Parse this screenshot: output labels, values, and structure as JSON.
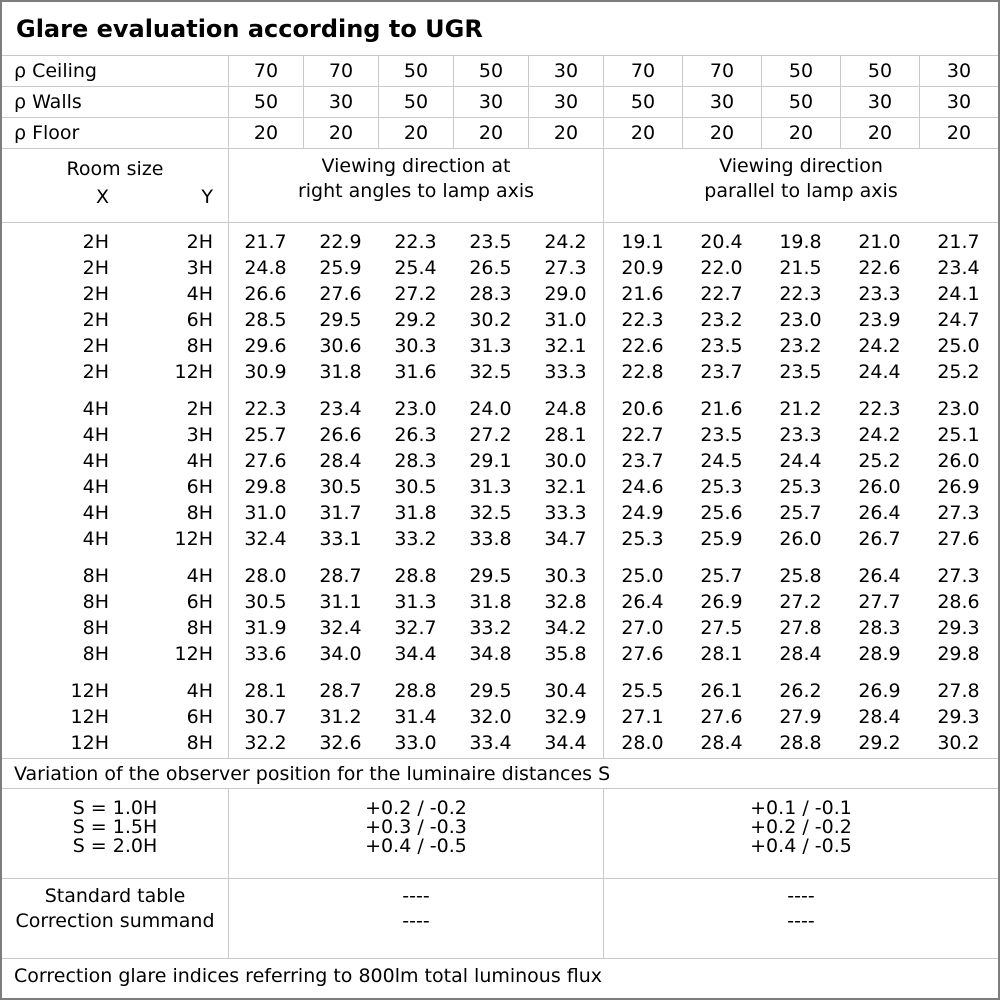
{
  "title": "Glare evaluation according to UGR",
  "colors": {
    "background": "#ffffff",
    "text": "#000000",
    "border_outer": "#7d7d7d",
    "border_inner": "#c9c9c9"
  },
  "reflectance_rows": [
    {
      "label": "ρ Ceiling",
      "values": [
        "70",
        "70",
        "50",
        "50",
        "30",
        "70",
        "70",
        "50",
        "50",
        "30"
      ]
    },
    {
      "label": "ρ Walls",
      "values": [
        "50",
        "30",
        "50",
        "30",
        "30",
        "50",
        "30",
        "50",
        "30",
        "30"
      ]
    },
    {
      "label": "ρ Floor",
      "values": [
        "20",
        "20",
        "20",
        "20",
        "20",
        "20",
        "20",
        "20",
        "20",
        "20"
      ]
    }
  ],
  "header": {
    "room_size_label": "Room size",
    "x_label": "X",
    "y_label": "Y",
    "group1_line1": "Viewing direction at",
    "group1_line2": "right angles to lamp axis",
    "group2_line1": "Viewing direction",
    "group2_line2": "parallel to lamp axis"
  },
  "ugr_blocks": [
    {
      "x": "2H",
      "rows": [
        {
          "y": "2H",
          "right_angles": [
            "21.7",
            "22.9",
            "22.3",
            "23.5",
            "24.2"
          ],
          "parallel": [
            "19.1",
            "20.4",
            "19.8",
            "21.0",
            "21.7"
          ]
        },
        {
          "y": "3H",
          "right_angles": [
            "24.8",
            "25.9",
            "25.4",
            "26.5",
            "27.3"
          ],
          "parallel": [
            "20.9",
            "22.0",
            "21.5",
            "22.6",
            "23.4"
          ]
        },
        {
          "y": "4H",
          "right_angles": [
            "26.6",
            "27.6",
            "27.2",
            "28.3",
            "29.0"
          ],
          "parallel": [
            "21.6",
            "22.7",
            "22.3",
            "23.3",
            "24.1"
          ]
        },
        {
          "y": "6H",
          "right_angles": [
            "28.5",
            "29.5",
            "29.2",
            "30.2",
            "31.0"
          ],
          "parallel": [
            "22.3",
            "23.2",
            "23.0",
            "23.9",
            "24.7"
          ]
        },
        {
          "y": "8H",
          "right_angles": [
            "29.6",
            "30.6",
            "30.3",
            "31.3",
            "32.1"
          ],
          "parallel": [
            "22.6",
            "23.5",
            "23.2",
            "24.2",
            "25.0"
          ]
        },
        {
          "y": "12H",
          "right_angles": [
            "30.9",
            "31.8",
            "31.6",
            "32.5",
            "33.3"
          ],
          "parallel": [
            "22.8",
            "23.7",
            "23.5",
            "24.4",
            "25.2"
          ]
        }
      ]
    },
    {
      "x": "4H",
      "rows": [
        {
          "y": "2H",
          "right_angles": [
            "22.3",
            "23.4",
            "23.0",
            "24.0",
            "24.8"
          ],
          "parallel": [
            "20.6",
            "21.6",
            "21.2",
            "22.3",
            "23.0"
          ]
        },
        {
          "y": "3H",
          "right_angles": [
            "25.7",
            "26.6",
            "26.3",
            "27.2",
            "28.1"
          ],
          "parallel": [
            "22.7",
            "23.5",
            "23.3",
            "24.2",
            "25.1"
          ]
        },
        {
          "y": "4H",
          "right_angles": [
            "27.6",
            "28.4",
            "28.3",
            "29.1",
            "30.0"
          ],
          "parallel": [
            "23.7",
            "24.5",
            "24.4",
            "25.2",
            "26.0"
          ]
        },
        {
          "y": "6H",
          "right_angles": [
            "29.8",
            "30.5",
            "30.5",
            "31.3",
            "32.1"
          ],
          "parallel": [
            "24.6",
            "25.3",
            "25.3",
            "26.0",
            "26.9"
          ]
        },
        {
          "y": "8H",
          "right_angles": [
            "31.0",
            "31.7",
            "31.8",
            "32.5",
            "33.3"
          ],
          "parallel": [
            "24.9",
            "25.6",
            "25.7",
            "26.4",
            "27.3"
          ]
        },
        {
          "y": "12H",
          "right_angles": [
            "32.4",
            "33.1",
            "33.2",
            "33.8",
            "34.7"
          ],
          "parallel": [
            "25.3",
            "25.9",
            "26.0",
            "26.7",
            "27.6"
          ]
        }
      ]
    },
    {
      "x": "8H",
      "rows": [
        {
          "y": "4H",
          "right_angles": [
            "28.0",
            "28.7",
            "28.8",
            "29.5",
            "30.3"
          ],
          "parallel": [
            "25.0",
            "25.7",
            "25.8",
            "26.4",
            "27.3"
          ]
        },
        {
          "y": "6H",
          "right_angles": [
            "30.5",
            "31.1",
            "31.3",
            "31.8",
            "32.8"
          ],
          "parallel": [
            "26.4",
            "26.9",
            "27.2",
            "27.7",
            "28.6"
          ]
        },
        {
          "y": "8H",
          "right_angles": [
            "31.9",
            "32.4",
            "32.7",
            "33.2",
            "34.2"
          ],
          "parallel": [
            "27.0",
            "27.5",
            "27.8",
            "28.3",
            "29.3"
          ]
        },
        {
          "y": "12H",
          "right_angles": [
            "33.6",
            "34.0",
            "34.4",
            "34.8",
            "35.8"
          ],
          "parallel": [
            "27.6",
            "28.1",
            "28.4",
            "28.9",
            "29.8"
          ]
        }
      ]
    },
    {
      "x": "12H",
      "rows": [
        {
          "y": "4H",
          "right_angles": [
            "28.1",
            "28.7",
            "28.8",
            "29.5",
            "30.4"
          ],
          "parallel": [
            "25.5",
            "26.1",
            "26.2",
            "26.9",
            "27.8"
          ]
        },
        {
          "y": "6H",
          "right_angles": [
            "30.7",
            "31.2",
            "31.4",
            "32.0",
            "32.9"
          ],
          "parallel": [
            "27.1",
            "27.6",
            "27.9",
            "28.4",
            "29.3"
          ]
        },
        {
          "y": "8H",
          "right_angles": [
            "32.2",
            "32.6",
            "33.0",
            "33.4",
            "34.4"
          ],
          "parallel": [
            "28.0",
            "28.4",
            "28.8",
            "29.2",
            "30.2"
          ]
        }
      ]
    }
  ],
  "variation_note": "Variation of the observer position for the luminaire distances S",
  "s_rows": [
    {
      "label": "S = 1.0H",
      "right_angles": "+0.2 / -0.2",
      "parallel": "+0.1 / -0.1"
    },
    {
      "label": "S = 1.5H",
      "right_angles": "+0.3 / -0.3",
      "parallel": "+0.2 / -0.2"
    },
    {
      "label": "S = 2.0H",
      "right_angles": "+0.4 / -0.5",
      "parallel": "+0.4 / -0.5"
    }
  ],
  "correction_rows": [
    {
      "label": "Standard table",
      "right_angles": "----",
      "parallel": "----"
    },
    {
      "label": "Correction summand",
      "right_angles": "----",
      "parallel": "----"
    }
  ],
  "footer_note": "Correction glare indices referring to 800lm total luminous flux"
}
